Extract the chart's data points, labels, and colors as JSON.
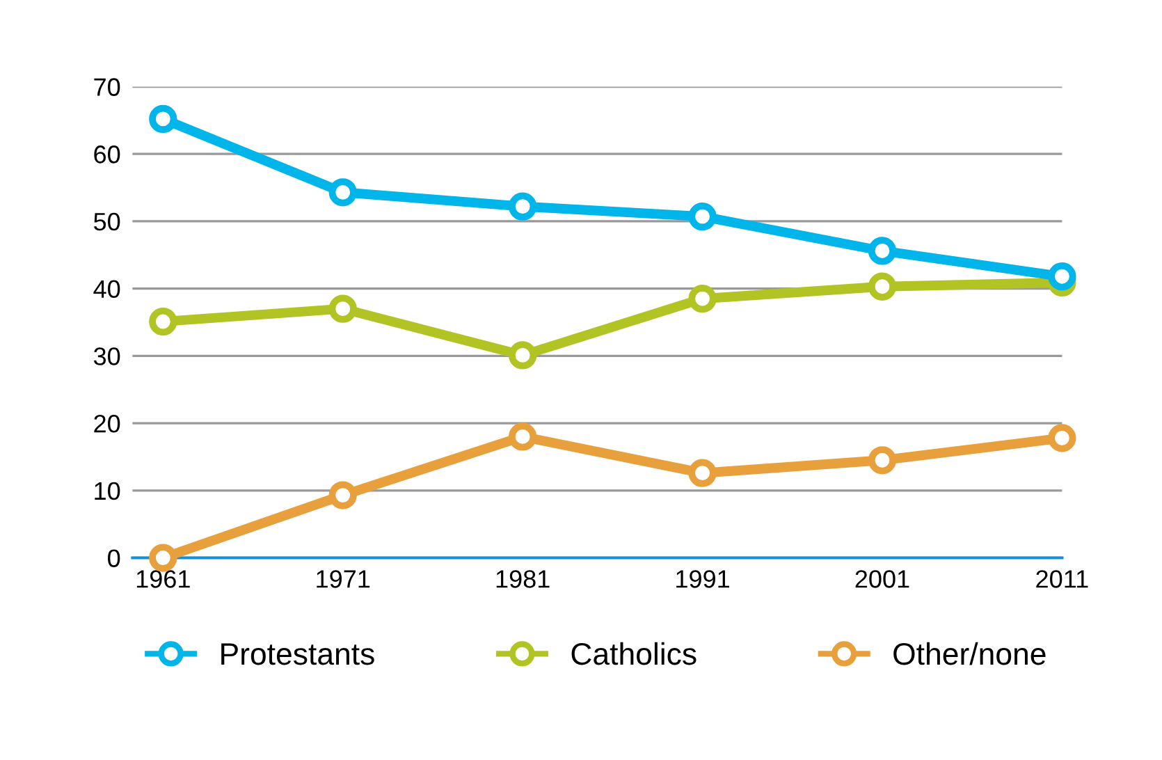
{
  "chart_data": {
    "type": "line",
    "categories": [
      "1961",
      "1971",
      "1981",
      "1991",
      "2001",
      "2011"
    ],
    "series": [
      {
        "name": "Protestants",
        "color": "#00b5ea",
        "values": [
          65.2,
          54.3,
          52.2,
          50.7,
          45.6,
          41.8
        ]
      },
      {
        "name": "Catholics",
        "color": "#b2c424",
        "values": [
          35.1,
          37.0,
          30.1,
          38.5,
          40.3,
          40.9
        ]
      },
      {
        "name": "Other/none",
        "color": "#e8a03c",
        "values": [
          0,
          9.3,
          18.0,
          12.6,
          14.5,
          17.8
        ]
      }
    ],
    "ylim": [
      0,
      70
    ],
    "yticks": [
      0,
      10,
      20,
      30,
      40,
      50,
      60,
      70
    ],
    "grid": "y",
    "legend": "bottom",
    "marker": "circle",
    "line_style": "solid"
  }
}
